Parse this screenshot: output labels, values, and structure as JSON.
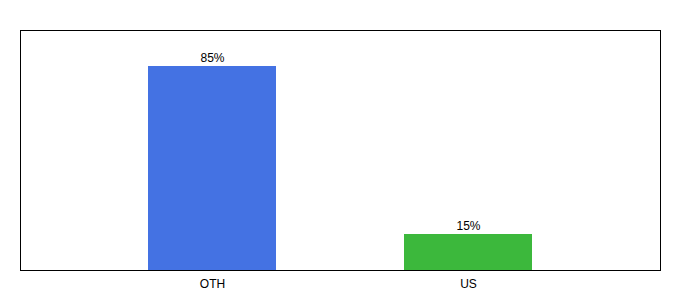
{
  "chart_data": {
    "type": "bar",
    "categories": [
      "OTH",
      "US"
    ],
    "values": [
      85,
      15
    ],
    "value_labels": [
      "85%",
      "15%"
    ],
    "colors": [
      "#4472E3",
      "#3CB83C"
    ],
    "ylim": [
      0,
      100
    ],
    "grid": false,
    "data_labels": true,
    "tick_labels": "x"
  }
}
